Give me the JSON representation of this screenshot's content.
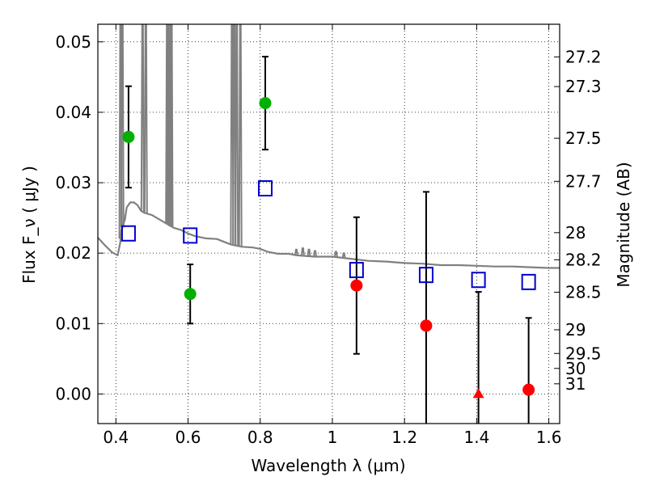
{
  "chart_data": {
    "type": "scatter",
    "xlabel": "Wavelength  λ (μm)",
    "ylabel": "Flux  F_ν  ( μJy )",
    "ylabel_right": "Magnitude (AB)",
    "xlim": [
      0.35,
      1.63
    ],
    "ylim": [
      -0.0042,
      0.0525
    ],
    "x_ticks": [
      0.4,
      0.6,
      0.8,
      1.0,
      1.2,
      1.4,
      1.6
    ],
    "x_tick_labels": [
      "0.4",
      "0.6",
      "0.8",
      "1",
      "1.2",
      "1.4",
      "1.6"
    ],
    "y_ticks": [
      0.0,
      0.01,
      0.02,
      0.03,
      0.04,
      0.05
    ],
    "y_tick_labels": [
      "0.00",
      "0.01",
      "0.02",
      "0.03",
      "0.04",
      "0.05"
    ],
    "mag_ticks": [
      27.2,
      27.3,
      27.5,
      27.7,
      28,
      28.2,
      28.5,
      29,
      29.5,
      30,
      31
    ],
    "mag_tick_labels": [
      "27.2",
      "27.3",
      "27.5",
      "27.7",
      "28",
      "28.2",
      "28.5",
      "29",
      "29.5",
      "30",
      "31"
    ],
    "grid": true,
    "colors": {
      "model": "#808080",
      "detection_green": "#00b000",
      "detection_red": "#ff0000",
      "model_photometry": "#0000cc",
      "errorbar": "#000000"
    },
    "series": [
      {
        "marker": "circle",
        "color": "#00b000",
        "points": [
          {
            "x": 0.435,
            "y": 0.0365,
            "yerr": 0.0072
          },
          {
            "x": 0.606,
            "y": 0.0142,
            "yerr": 0.0042
          },
          {
            "x": 0.814,
            "y": 0.0413,
            "yerr": 0.0066
          }
        ]
      },
      {
        "marker": "circle",
        "color": "#ff0000",
        "points": [
          {
            "x": 1.067,
            "y": 0.0154,
            "yerr": 0.0097
          },
          {
            "x": 1.26,
            "y": 0.0097,
            "yerr": 0.019
          },
          {
            "x": 1.544,
            "y": 0.0006,
            "yerr": 0.0102
          }
        ]
      },
      {
        "marker": "triangle",
        "color": "#ff0000",
        "points": [
          {
            "x": 1.405,
            "y": 0.0,
            "yerr": 0.0145
          }
        ]
      },
      {
        "marker": "square",
        "color": "#0000cc",
        "points": [
          {
            "x": 0.435,
            "y": 0.0228
          },
          {
            "x": 0.606,
            "y": 0.0225
          },
          {
            "x": 0.814,
            "y": 0.0292
          },
          {
            "x": 1.067,
            "y": 0.0176
          },
          {
            "x": 1.26,
            "y": 0.0169
          },
          {
            "x": 1.405,
            "y": 0.0162
          },
          {
            "x": 1.544,
            "y": 0.0159
          }
        ]
      }
    ],
    "model_spectrum": {
      "x": [
        0.35,
        0.37,
        0.39,
        0.405,
        0.412,
        0.415,
        0.42,
        0.425,
        0.43,
        0.44,
        0.45,
        0.46,
        0.47,
        0.48,
        0.5,
        0.52,
        0.54,
        0.56,
        0.58,
        0.6,
        0.62,
        0.65,
        0.68,
        0.7,
        0.72,
        0.75,
        0.78,
        0.8,
        0.82,
        0.85,
        0.88,
        0.9,
        0.95,
        1.0,
        1.05,
        1.1,
        1.15,
        1.2,
        1.25,
        1.3,
        1.35,
        1.4,
        1.45,
        1.5,
        1.55,
        1.6,
        1.63
      ],
      "y": [
        0.0222,
        0.0211,
        0.0201,
        0.0197,
        0.0215,
        0.0232,
        0.024,
        0.0248,
        0.0265,
        0.0272,
        0.0272,
        0.0268,
        0.026,
        0.0257,
        0.0254,
        0.0248,
        0.0242,
        0.0236,
        0.0233,
        0.0228,
        0.0224,
        0.0221,
        0.022,
        0.0216,
        0.0212,
        0.0209,
        0.0208,
        0.0206,
        0.0202,
        0.0199,
        0.0199,
        0.0197,
        0.0195,
        0.0195,
        0.0192,
        0.0189,
        0.0188,
        0.0186,
        0.0185,
        0.0183,
        0.0183,
        0.0182,
        0.0181,
        0.0181,
        0.018,
        0.0179,
        0.0179
      ]
    },
    "emission_lines": [
      {
        "x": 0.413,
        "peak": 0.0525
      },
      {
        "x": 0.418,
        "peak": 0.0525
      },
      {
        "x": 0.474,
        "peak": 0.0525
      },
      {
        "x": 0.483,
        "peak": 0.0525
      },
      {
        "x": 0.542,
        "peak": 0.0525
      },
      {
        "x": 0.545,
        "peak": 0.0525
      },
      {
        "x": 0.552,
        "peak": 0.0525
      },
      {
        "x": 0.554,
        "peak": 0.0525
      },
      {
        "x": 0.722,
        "peak": 0.0525
      },
      {
        "x": 0.728,
        "peak": 0.0525
      },
      {
        "x": 0.735,
        "peak": 0.0525
      },
      {
        "x": 0.745,
        "peak": 0.0525
      },
      {
        "x": 0.9,
        "peak": 0.0205
      },
      {
        "x": 0.918,
        "peak": 0.0207
      },
      {
        "x": 0.935,
        "peak": 0.0205
      },
      {
        "x": 0.952,
        "peak": 0.0203
      },
      {
        "x": 1.01,
        "peak": 0.0202
      },
      {
        "x": 1.032,
        "peak": 0.02
      }
    ]
  }
}
